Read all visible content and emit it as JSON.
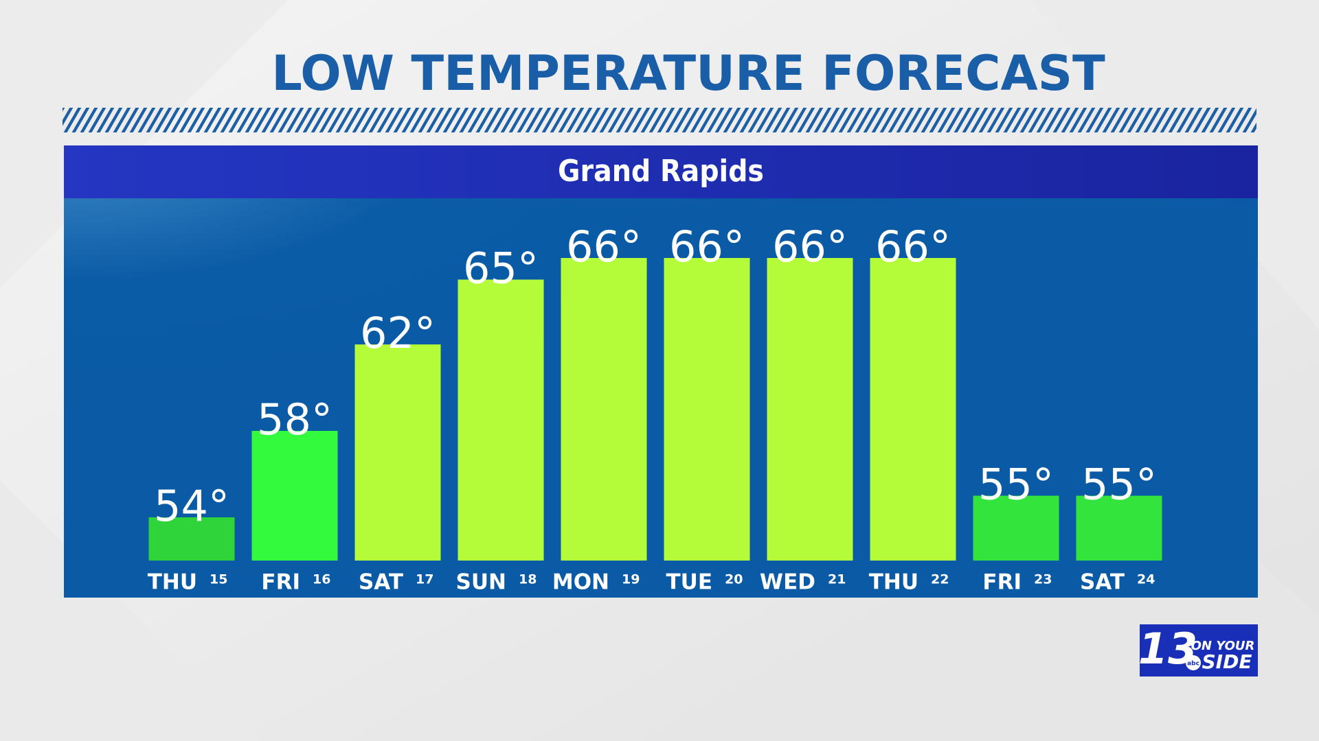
{
  "chart_data": {
    "type": "bar",
    "title": "LOW TEMPERATURE FORECAST",
    "subtitle": "Grand Rapids",
    "categories": [
      "THU",
      "FRI",
      "SAT",
      "SUN",
      "MON",
      "TUE",
      "WED",
      "THU",
      "FRI",
      "SAT"
    ],
    "day_numbers": [
      15,
      16,
      17,
      18,
      19,
      20,
      21,
      22,
      23,
      24
    ],
    "values": [
      54,
      58,
      62,
      65,
      66,
      66,
      66,
      66,
      55,
      55
    ],
    "value_labels": [
      "54°",
      "58°",
      "62°",
      "65°",
      "66°",
      "66°",
      "66°",
      "66°",
      "55°",
      "55°"
    ],
    "colors": [
      "#2fd33a",
      "#33fa3d",
      "#b4fb3a",
      "#b4fb3a",
      "#b4fb3a",
      "#b4fb3a",
      "#b4fb3a",
      "#b4fb3a",
      "#33e43d",
      "#33e43d"
    ],
    "ylim": [
      52,
      66
    ]
  },
  "logo": {
    "number": "13",
    "tagline_top": "ON YOUR",
    "tagline_bottom": "SIDE",
    "network": "abc"
  }
}
